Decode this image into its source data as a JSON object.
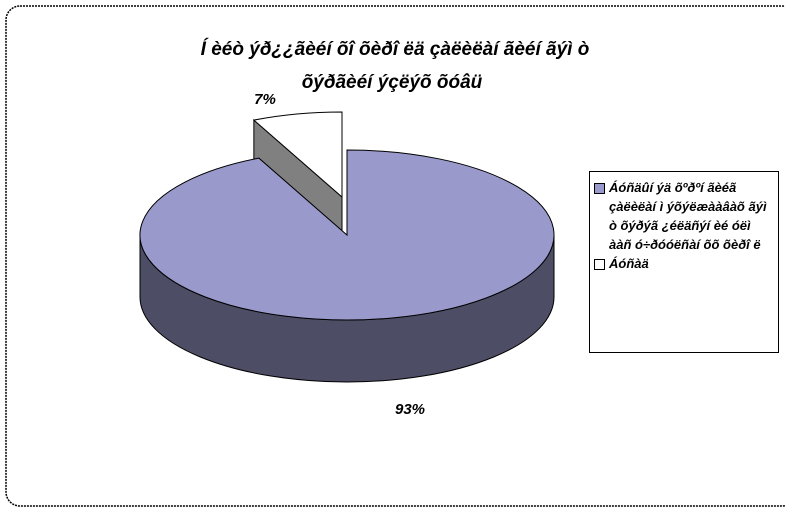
{
  "chart_data": {
    "type": "pie",
    "title": [
      "Í èéò ýð¿¿ãèéí õî õèðî ëä çàëèëàí ãèéí ãýì ò",
      "õýðãèéí ýçëýõ õóâü"
    ],
    "categories": [
      "Áóñäûí ýä õºðºí ãèéã çàëèëàí ì ýõýëæààâàõ ãýì ò õýðýã ¿éëäñýí èé óëì ààñ ó÷ðóóëñàí õõ õèðî ë",
      "Áóñàä"
    ],
    "values": [
      93,
      7
    ],
    "value_labels": [
      "93%",
      "7%"
    ],
    "colors": [
      "#9999cc",
      "#ffffff"
    ],
    "exploded": [
      false,
      true
    ],
    "legend": "right"
  }
}
